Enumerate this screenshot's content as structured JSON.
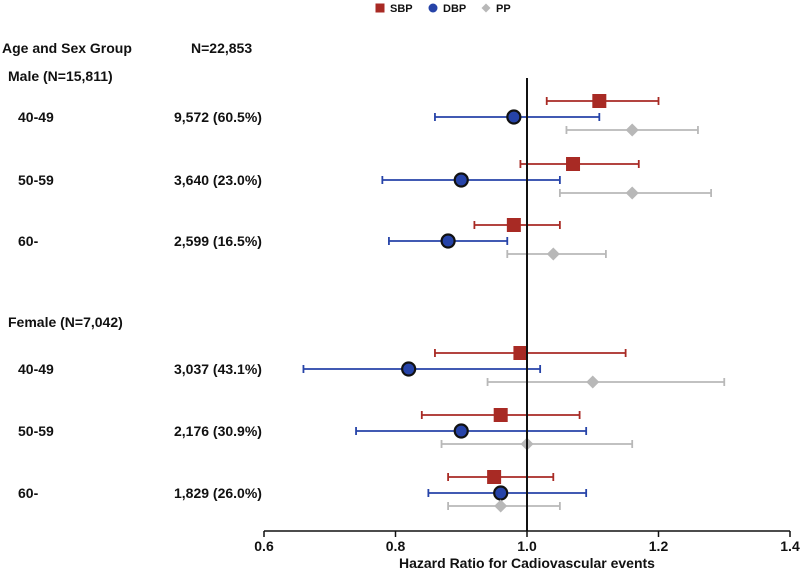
{
  "chart_data": {
    "type": "scatter",
    "subtype": "forest-plot",
    "title": "",
    "xlabel": "Hazard Ratio for Cadiovascular events",
    "ylabel": "",
    "xlim": [
      0.6,
      1.4
    ],
    "x_ticks": [
      "0.6",
      "0.8",
      "1.0",
      "1.2",
      "1.4"
    ],
    "reference_line": 1.0,
    "grid": false,
    "legend_position": "top-center",
    "headers": {
      "group": "Age and Sex Group",
      "n": "N=22,853"
    },
    "series": [
      {
        "name": "SBP",
        "color": "#a82a24",
        "marker": "square"
      },
      {
        "name": "DBP",
        "color": "#2643a8",
        "marker": "circle"
      },
      {
        "name": "PP",
        "color": "#b8b8b8",
        "marker": "diamond"
      }
    ],
    "sections": [
      {
        "label": "Male (N=15,811)",
        "rows": [
          {
            "group": "40-49",
            "n": "9,572 (60.5%)",
            "SBP": {
              "hr": 1.11,
              "lo": 1.03,
              "hi": 1.2
            },
            "DBP": {
              "hr": 0.98,
              "lo": 0.86,
              "hi": 1.11
            },
            "PP": {
              "hr": 1.16,
              "lo": 1.06,
              "hi": 1.26
            }
          },
          {
            "group": "50-59",
            "n": "3,640 (23.0%)",
            "SBP": {
              "hr": 1.07,
              "lo": 0.99,
              "hi": 1.17
            },
            "DBP": {
              "hr": 0.9,
              "lo": 0.78,
              "hi": 1.05
            },
            "PP": {
              "hr": 1.16,
              "lo": 1.05,
              "hi": 1.28
            }
          },
          {
            "group": "60-",
            "n": "2,599 (16.5%)",
            "SBP": {
              "hr": 0.98,
              "lo": 0.92,
              "hi": 1.05
            },
            "DBP": {
              "hr": 0.88,
              "lo": 0.79,
              "hi": 0.97
            },
            "PP": {
              "hr": 1.04,
              "lo": 0.97,
              "hi": 1.12
            }
          }
        ]
      },
      {
        "label": "Female (N=7,042)",
        "rows": [
          {
            "group": "40-49",
            "n": "3,037 (43.1%)",
            "SBP": {
              "hr": 0.99,
              "lo": 0.86,
              "hi": 1.15
            },
            "DBP": {
              "hr": 0.82,
              "lo": 0.66,
              "hi": 1.02
            },
            "PP": {
              "hr": 1.1,
              "lo": 0.94,
              "hi": 1.3
            }
          },
          {
            "group": "50-59",
            "n": "2,176 (30.9%)",
            "SBP": {
              "hr": 0.96,
              "lo": 0.84,
              "hi": 1.08
            },
            "DBP": {
              "hr": 0.9,
              "lo": 0.74,
              "hi": 1.09
            },
            "PP": {
              "hr": 1.0,
              "lo": 0.87,
              "hi": 1.16
            }
          },
          {
            "group": "60-",
            "n": "1,829 (26.0%)",
            "SBP": {
              "hr": 0.95,
              "lo": 0.88,
              "hi": 1.04
            },
            "DBP": {
              "hr": 0.96,
              "lo": 0.85,
              "hi": 1.09
            },
            "PP": {
              "hr": 0.96,
              "lo": 0.88,
              "hi": 1.05
            }
          }
        ]
      }
    ]
  }
}
